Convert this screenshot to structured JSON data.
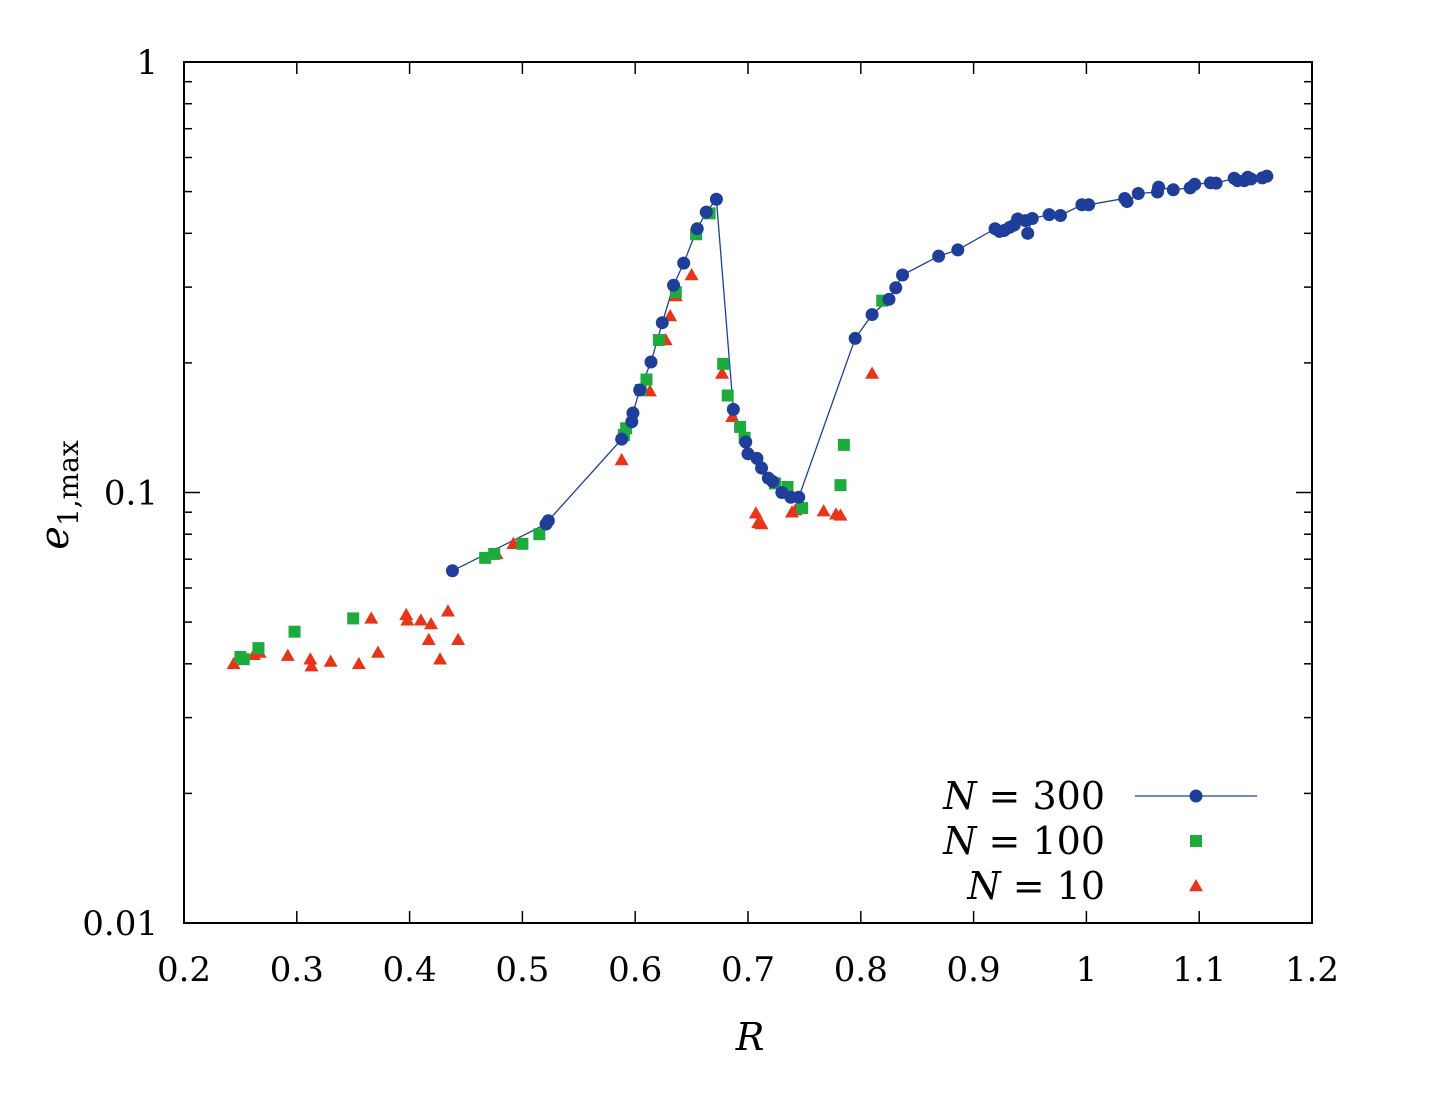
{
  "chart_data": {
    "type": "scatter",
    "xlabel": "R",
    "ylabel": "e1,max",
    "ylabel_main": "e",
    "ylabel_sub": "1,max",
    "xlim": [
      0.2,
      1.2
    ],
    "ylim": [
      0.01,
      1
    ],
    "yscale": "log",
    "grid": false,
    "legend_position": "bottom-right",
    "x_ticks": [
      "0.2",
      "0.3",
      "0.4",
      "0.5",
      "0.6",
      "0.7",
      "0.8",
      "0.9",
      "1",
      "1.1",
      "1.2"
    ],
    "y_ticks": [
      "0.01",
      "0.1",
      "1"
    ],
    "colors": {
      "n300": "#1f3e9a",
      "n100": "#1cab3c",
      "n10": "#e8351a"
    },
    "series": [
      {
        "name": "N = 300",
        "legend_label": "N = 300",
        "style": "line-circle",
        "points": [
          [
            0.438,
            0.0658
          ],
          [
            0.521,
            0.0845
          ],
          [
            0.523,
            0.086
          ],
          [
            0.588,
            0.133
          ],
          [
            0.597,
            0.146
          ],
          [
            0.598,
            0.153
          ],
          [
            0.604,
            0.173
          ],
          [
            0.614,
            0.201
          ],
          [
            0.624,
            0.248
          ],
          [
            0.634,
            0.303
          ],
          [
            0.643,
            0.341
          ],
          [
            0.655,
            0.41
          ],
          [
            0.663,
            0.448
          ],
          [
            0.672,
            0.48
          ],
          [
            0.687,
            0.156
          ],
          [
            0.698,
            0.131
          ],
          [
            0.7,
            0.123
          ],
          [
            0.708,
            0.12
          ],
          [
            0.712,
            0.114
          ],
          [
            0.718,
            0.108
          ],
          [
            0.722,
            0.106
          ],
          [
            0.73,
            0.1
          ],
          [
            0.738,
            0.0975
          ],
          [
            0.745,
            0.0975
          ],
          [
            0.795,
            0.228
          ],
          [
            0.81,
            0.259
          ],
          [
            0.825,
            0.281
          ],
          [
            0.831,
            0.299
          ],
          [
            0.837,
            0.32
          ],
          [
            0.869,
            0.354
          ],
          [
            0.886,
            0.366
          ],
          [
            0.919,
            0.41
          ],
          [
            0.923,
            0.404
          ],
          [
            0.927,
            0.406
          ],
          [
            0.932,
            0.413
          ],
          [
            0.936,
            0.418
          ],
          [
            0.939,
            0.432
          ],
          [
            0.946,
            0.428
          ],
          [
            0.948,
            0.4
          ],
          [
            0.952,
            0.433
          ],
          [
            0.967,
            0.442
          ],
          [
            0.977,
            0.44
          ],
          [
            0.996,
            0.466
          ],
          [
            1.002,
            0.466
          ],
          [
            1.034,
            0.482
          ],
          [
            1.036,
            0.474
          ],
          [
            1.046,
            0.495
          ],
          [
            1.063,
            0.499
          ],
          [
            1.064,
            0.512
          ],
          [
            1.077,
            0.505
          ],
          [
            1.092,
            0.51
          ],
          [
            1.096,
            0.52
          ],
          [
            1.11,
            0.524
          ],
          [
            1.115,
            0.523
          ],
          [
            1.131,
            0.537
          ],
          [
            1.134,
            0.53
          ],
          [
            1.14,
            0.53
          ],
          [
            1.143,
            0.54
          ],
          [
            1.146,
            0.535
          ],
          [
            1.156,
            0.538
          ],
          [
            1.16,
            0.543
          ]
        ]
      },
      {
        "name": "N = 100",
        "legend_label": "N = 100",
        "style": "square",
        "points": [
          [
            0.25,
            0.0415
          ],
          [
            0.253,
            0.041
          ],
          [
            0.266,
            0.0435
          ],
          [
            0.298,
            0.0475
          ],
          [
            0.35,
            0.051
          ],
          [
            0.467,
            0.0705
          ],
          [
            0.475,
            0.072
          ],
          [
            0.5,
            0.076
          ],
          [
            0.515,
            0.08
          ],
          [
            0.59,
            0.136
          ],
          [
            0.592,
            0.141
          ],
          [
            0.605,
            0.173
          ],
          [
            0.61,
            0.183
          ],
          [
            0.621,
            0.226
          ],
          [
            0.636,
            0.292
          ],
          [
            0.654,
            0.398
          ],
          [
            0.666,
            0.445
          ],
          [
            0.678,
            0.199
          ],
          [
            0.682,
            0.168
          ],
          [
            0.693,
            0.142
          ],
          [
            0.697,
            0.134
          ],
          [
            0.724,
            0.105
          ],
          [
            0.735,
            0.103
          ],
          [
            0.748,
            0.092
          ],
          [
            0.782,
            0.104
          ],
          [
            0.785,
            0.129
          ],
          [
            0.819,
            0.279
          ]
        ]
      },
      {
        "name": "N = 10",
        "legend_label": "N = 10",
        "style": "triangle",
        "points": [
          [
            0.244,
            0.04
          ],
          [
            0.262,
            0.042
          ],
          [
            0.267,
            0.0425
          ],
          [
            0.292,
            0.0418
          ],
          [
            0.312,
            0.041
          ],
          [
            0.313,
            0.0395
          ],
          [
            0.33,
            0.0405
          ],
          [
            0.355,
            0.04
          ],
          [
            0.366,
            0.051
          ],
          [
            0.372,
            0.0425
          ],
          [
            0.397,
            0.052
          ],
          [
            0.398,
            0.0505
          ],
          [
            0.41,
            0.0505
          ],
          [
            0.417,
            0.0455
          ],
          [
            0.419,
            0.0495
          ],
          [
            0.427,
            0.041
          ],
          [
            0.434,
            0.053
          ],
          [
            0.443,
            0.0455
          ],
          [
            0.477,
            0.072
          ],
          [
            0.492,
            0.076
          ],
          [
            0.588,
            0.119
          ],
          [
            0.613,
            0.172
          ],
          [
            0.627,
            0.226
          ],
          [
            0.631,
            0.257
          ],
          [
            0.636,
            0.286
          ],
          [
            0.65,
            0.32
          ],
          [
            0.677,
            0.189
          ],
          [
            0.686,
            0.15
          ],
          [
            0.707,
            0.0895
          ],
          [
            0.709,
            0.085
          ],
          [
            0.712,
            0.0845
          ],
          [
            0.739,
            0.09
          ],
          [
            0.742,
            0.091
          ],
          [
            0.767,
            0.0905
          ],
          [
            0.778,
            0.089
          ],
          [
            0.782,
            0.0885
          ],
          [
            0.81,
            0.189
          ]
        ]
      }
    ]
  }
}
